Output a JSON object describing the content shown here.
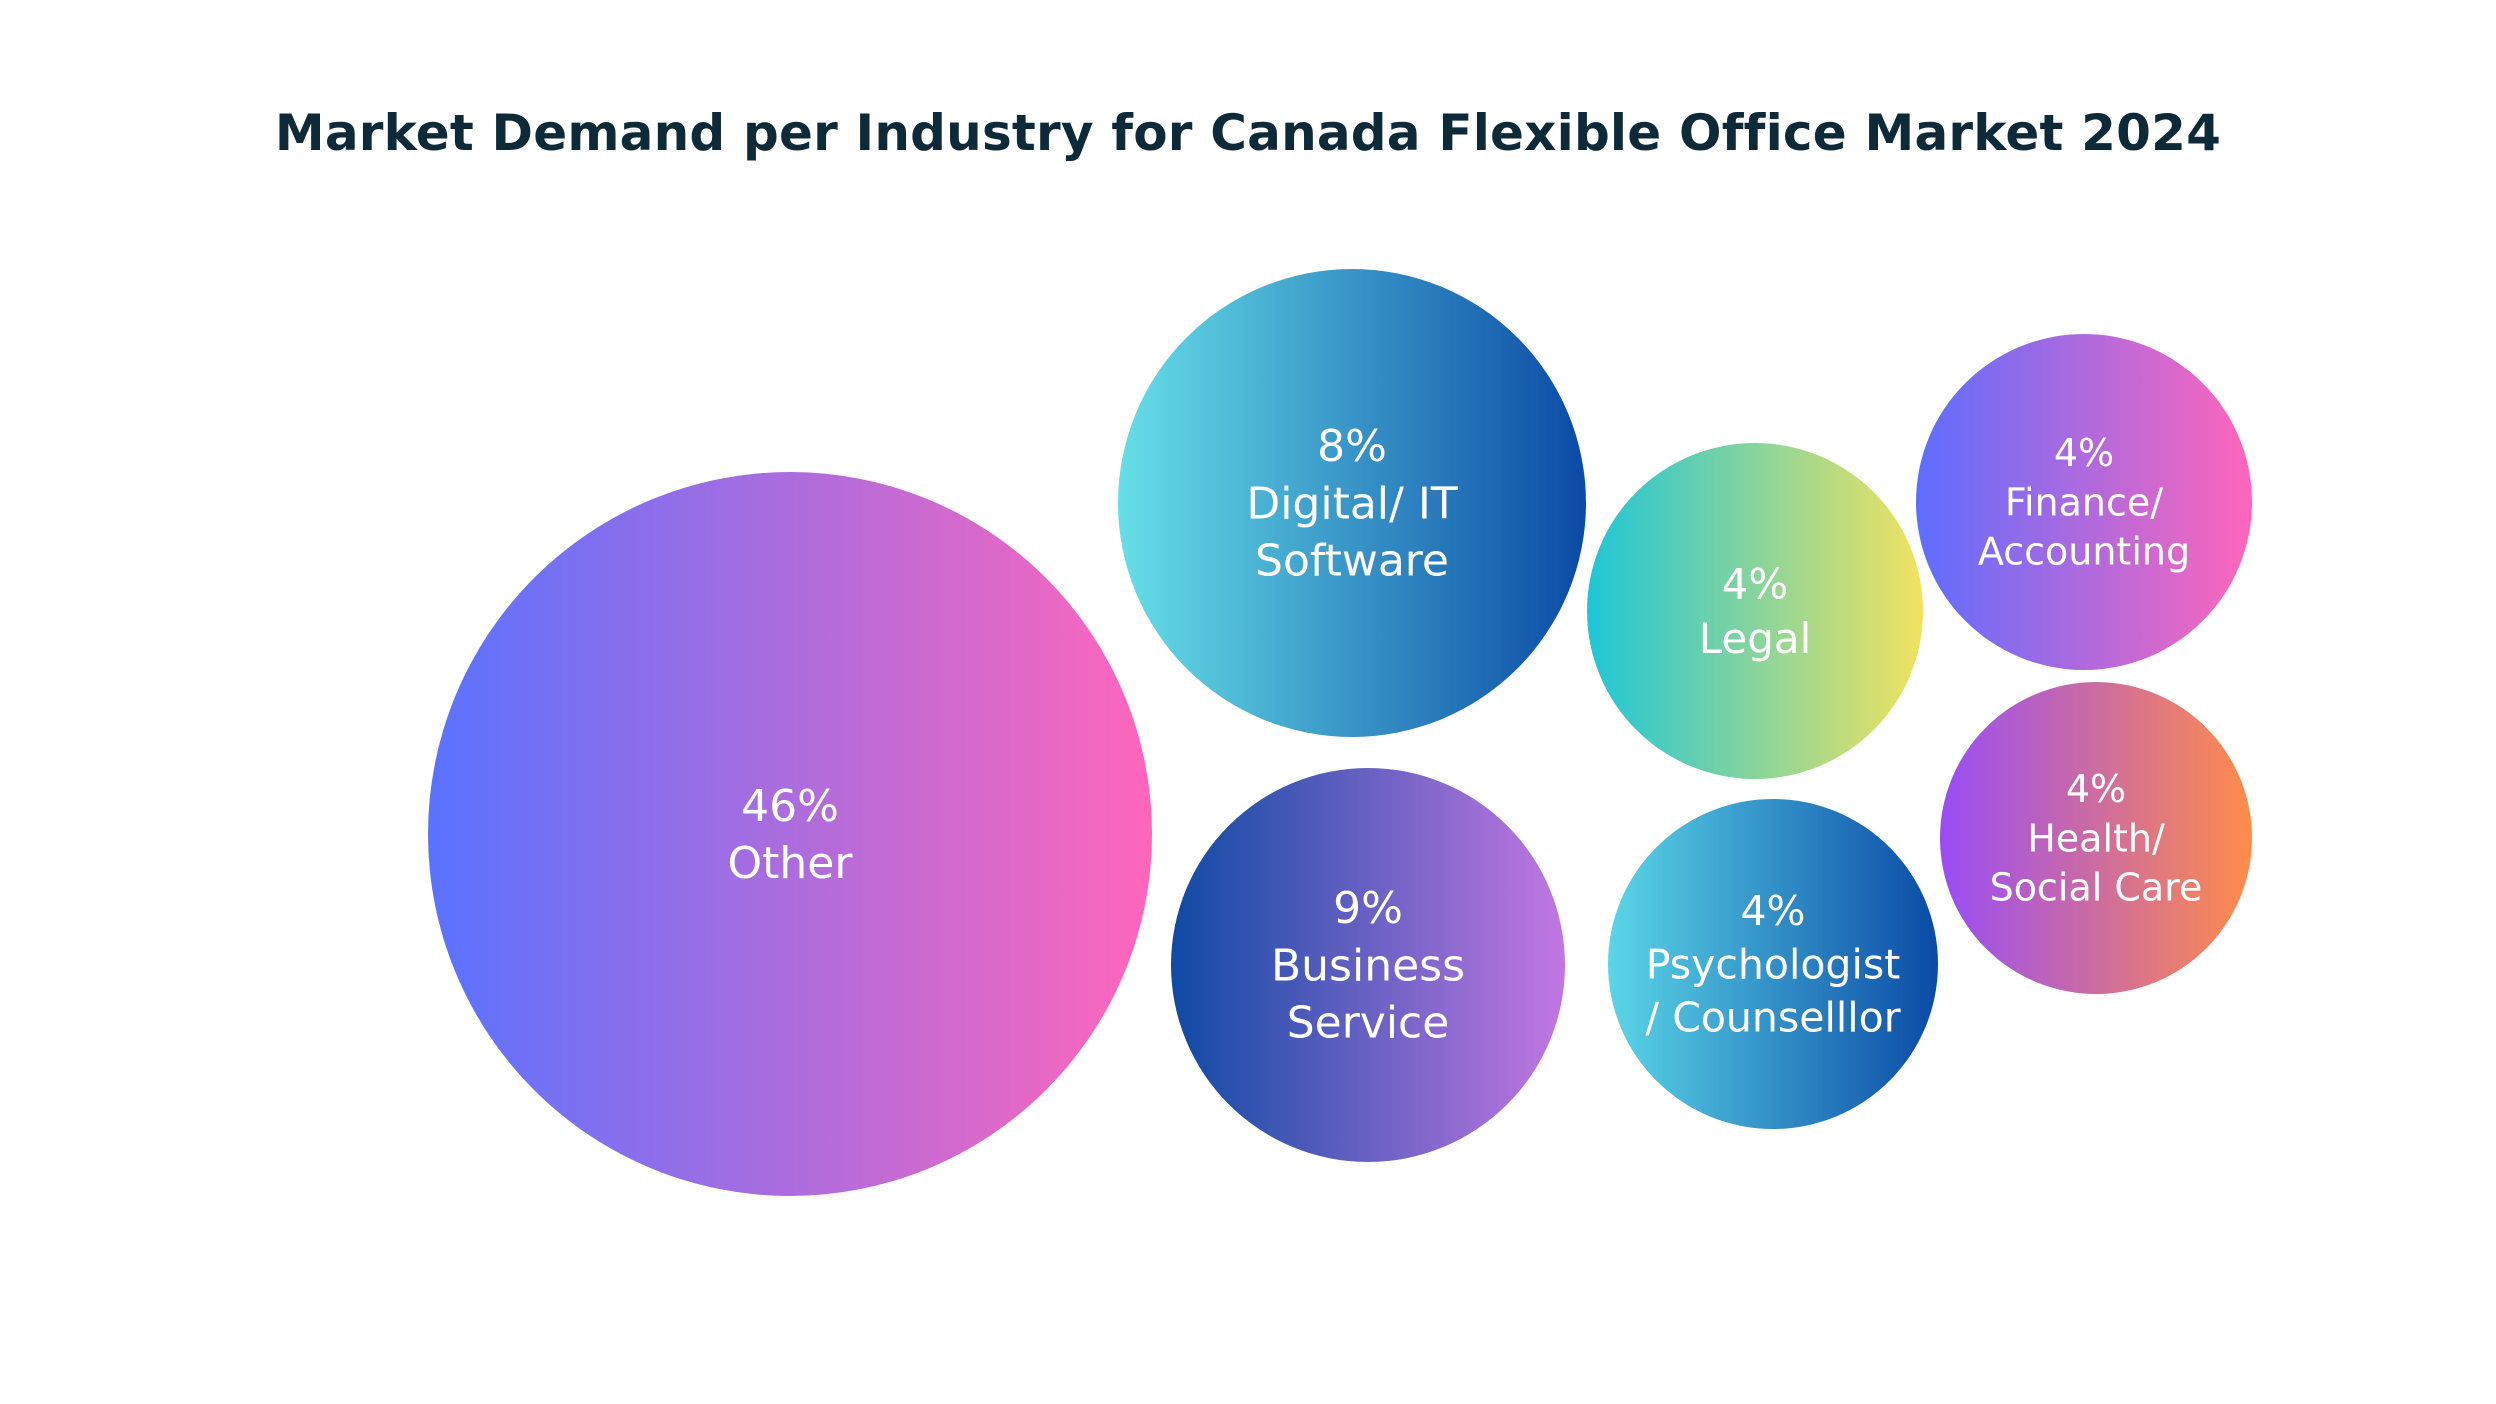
{
  "chart_data": {
    "type": "bubble",
    "title": "Market Demand per Industry for Canada Flexible Office Market 2024",
    "unit": "%",
    "items": [
      {
        "label": "Other",
        "label_lines": [
          "Other"
        ],
        "value": 46,
        "value_label": "46%",
        "gradient": [
          "#5a72ff",
          "#ff66bb"
        ],
        "direction": "horizontal"
      },
      {
        "label": "Digital/ IT Software",
        "label_lines": [
          "Digital/ IT",
          "Software"
        ],
        "value": 8,
        "value_label": "8%",
        "gradient": [
          "#66dfe8",
          "#0b4aa6"
        ],
        "direction": "horizontal"
      },
      {
        "label": "Business Service",
        "label_lines": [
          "Business",
          "Service"
        ],
        "value": 9,
        "value_label": "9%",
        "gradient": [
          "#0f4aa4",
          "#c277e2"
        ],
        "direction": "horizontal"
      },
      {
        "label": "Legal",
        "label_lines": [
          "Legal"
        ],
        "value": 4,
        "value_label": "4%",
        "gradient": [
          "#1ec6d8",
          "#f2e260"
        ],
        "direction": "horizontal"
      },
      {
        "label": "Psychologist / Counselllor",
        "label_lines": [
          "Psychologist",
          "/ Counselllor"
        ],
        "value": 4,
        "value_label": "4%",
        "gradient": [
          "#5ad6e8",
          "#0b4aa6"
        ],
        "direction": "horizontal"
      },
      {
        "label": "Finance/ Accounting",
        "label_lines": [
          "Finance/",
          "Accounting"
        ],
        "value": 4,
        "value_label": "4%",
        "gradient": [
          "#5e6dff",
          "#ff66bb"
        ],
        "direction": "horizontal"
      },
      {
        "label": "Health/ Social Care",
        "label_lines": [
          "Health/",
          "Social Care"
        ],
        "value": 4,
        "value_label": "4%",
        "gradient": [
          "#9a4cf6",
          "#ff8c4a"
        ],
        "direction": "horizontal"
      }
    ]
  }
}
